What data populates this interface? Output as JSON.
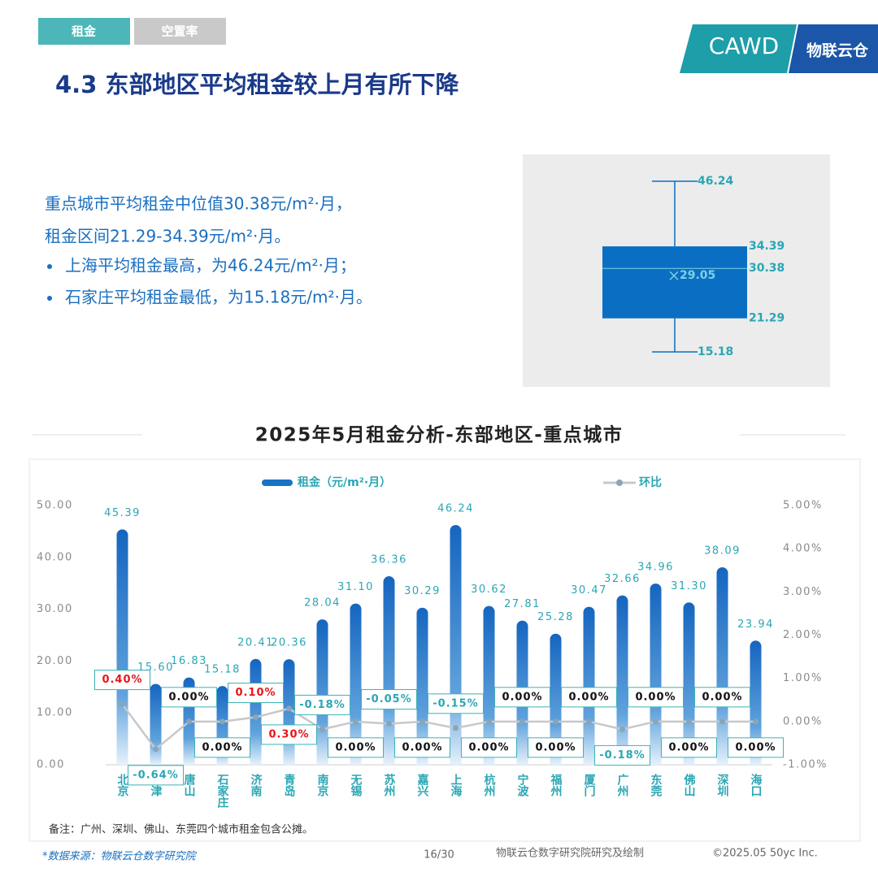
{
  "tabs": [
    "租金",
    "空置率"
  ],
  "logo": {
    "left": "CAWD",
    "right": "物联云仓"
  },
  "title": "4.3 东部地区平均租金较上月有所下降",
  "summary": {
    "lines": [
      "重点城市平均租金中位值30.38元/m²·月，",
      "租金区间21.29-34.39元/m²·月。"
    ],
    "bullets": [
      "上海平均租金最高，为46.24元/m²·月；",
      "石家庄平均租金最低，为15.18元/m²·月。"
    ]
  },
  "chart_data": [
    {
      "type": "box",
      "min": 15.18,
      "q1": 21.29,
      "median": 30.38,
      "mean": 29.05,
      "q3": 34.39,
      "max": 46.24,
      "color": "#0a6fc2"
    },
    {
      "type": "bar",
      "title": "2025年5月租金分析-东部地区-重点城市",
      "categories": [
        "北京",
        "天津",
        "唐山",
        "石家庄",
        "济南",
        "青岛",
        "南京",
        "无锡",
        "苏州",
        "嘉兴",
        "上海",
        "杭州",
        "宁波",
        "福州",
        "厦门",
        "广州",
        "东莞",
        "佛山",
        "深圳",
        "海口"
      ],
      "series": [
        {
          "name": "租金（元/m²·月）",
          "color": "#1a72c4",
          "values": [
            45.39,
            15.6,
            16.83,
            15.18,
            20.41,
            20.36,
            28.04,
            31.1,
            36.36,
            30.29,
            46.24,
            30.62,
            27.81,
            25.28,
            30.47,
            32.66,
            34.96,
            31.3,
            38.09,
            23.94
          ],
          "value_labels": [
            "45.39",
            "15.60",
            "16.83",
            "15.18",
            "20.41",
            "20.36",
            "28.04",
            "31.10",
            "36.36",
            "30.29",
            "46.24",
            "30.62",
            "27.81",
            "25.28",
            "30.47",
            "32.66",
            "34.96",
            "31.30",
            "38.09",
            "23.94"
          ]
        },
        {
          "name": "环比",
          "type": "line",
          "axis": "y2",
          "color": "#c8c8c8",
          "values": [
            0.4,
            -0.64,
            0,
            0,
            0.1,
            0.3,
            -0.18,
            0,
            -0.05,
            0,
            -0.15,
            0,
            0,
            0,
            0,
            -0.18,
            0,
            0,
            0,
            0
          ],
          "value_labels": [
            "0.40%",
            "-0.64%",
            "0.00%",
            "0.00%",
            "0.10%",
            "0.30%",
            "-0.18%",
            "0.00%",
            "-0.05%",
            "0.00%",
            "-0.15%",
            "0.00%",
            "0.00%",
            "0.00%",
            "0.00%",
            "-0.18%",
            "0.00%",
            "0.00%",
            "0.00%",
            "0.00%"
          ]
        }
      ],
      "ylim": [
        0,
        50
      ],
      "yticks": [
        {
          "value": 0,
          "label": "0.00"
        },
        {
          "value": 10,
          "label": "10.00"
        },
        {
          "value": 20,
          "label": "20.00"
        },
        {
          "value": 30,
          "label": "30.00"
        },
        {
          "value": 40,
          "label": "40.00"
        },
        {
          "value": 50,
          "label": "50.00"
        }
      ],
      "y2lim": [
        -1,
        5
      ],
      "y2ticks": [
        {
          "value": -1,
          "label": "-1.00%"
        },
        {
          "value": 0,
          "label": "0.00%"
        },
        {
          "value": 1,
          "label": "1.00%"
        },
        {
          "value": 2,
          "label": "2.00%"
        },
        {
          "value": 3,
          "label": "3.00%"
        },
        {
          "value": 4,
          "label": "4.00%"
        },
        {
          "value": 5,
          "label": "5.00%"
        }
      ],
      "note": "备注：广州、深圳、佛山、东莞四个城市租金包含公摊。"
    }
  ],
  "footer": {
    "source": "*数据来源：物联云仓数字研究院",
    "page": "16/30",
    "credit": "物联云仓数字研究院研究及绘制",
    "copyright": "©2025.05 50yc Inc."
  }
}
